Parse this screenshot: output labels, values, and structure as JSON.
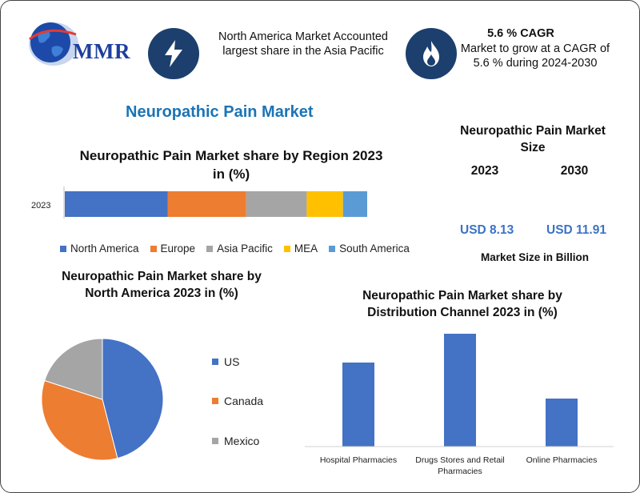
{
  "brand": {
    "logo_text": "MMR"
  },
  "header": {
    "left_text": "North America Market Accounted largest share in the Asia Pacific",
    "cagr_title": "5.6 % CAGR",
    "cagr_text": "Market to grow at a CAGR of 5.6 % during 2024-2030"
  },
  "icons": {
    "left": "lightning-bolt-icon",
    "right": "flame-icon"
  },
  "main_title": "Neuropathic Pain Market",
  "market_size": {
    "title": "Neuropathic Pain Market Size",
    "years": [
      "2023",
      "2030"
    ],
    "values": [
      "USD 8.13",
      "USD 11.91"
    ],
    "note": "Market Size in Billion",
    "value_color": "#3b73c4"
  },
  "chart_data": [
    {
      "type": "bar",
      "orientation": "horizontal-stacked",
      "title": "Neuropathic Pain Market share by Region 2023 in (%)",
      "categories": [
        "2023"
      ],
      "series": [
        {
          "name": "North America",
          "values": [
            34
          ],
          "color": "#4472c4"
        },
        {
          "name": "Europe",
          "values": [
            26
          ],
          "color": "#ed7d31"
        },
        {
          "name": "Asia Pacific",
          "values": [
            20
          ],
          "color": "#a5a5a5"
        },
        {
          "name": "MEA",
          "values": [
            12
          ],
          "color": "#ffc000"
        },
        {
          "name": "South America",
          "values": [
            8
          ],
          "color": "#5b9bd5"
        }
      ],
      "xlim": [
        0,
        100
      ],
      "legend": "bottom"
    },
    {
      "type": "pie",
      "title": "Neuropathic Pain Market share by North America 2023 in (%)",
      "labels": [
        "US",
        "Canada",
        "Mexico"
      ],
      "values": [
        46,
        34,
        20
      ],
      "colors": [
        "#4472c4",
        "#ed7d31",
        "#a5a5a5"
      ],
      "legend": "right"
    },
    {
      "type": "bar",
      "title": "Neuropathic Pain Market share by Distribution Channel 2023 in (%)",
      "categories": [
        "Hospital Pharmacies",
        "Drugs Stores and Retail Pharmacies",
        "Online Pharmacies"
      ],
      "values": [
        35,
        47,
        20
      ],
      "ylim": [
        0,
        50
      ],
      "color": "#4472c4"
    }
  ]
}
